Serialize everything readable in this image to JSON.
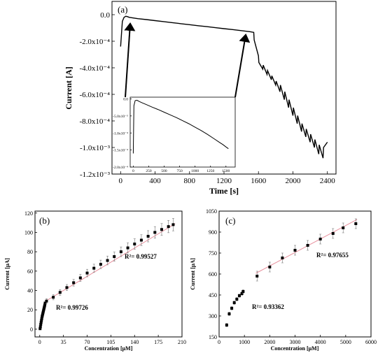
{
  "chart_data": [
    {
      "id": "a",
      "type": "line",
      "panel_label": "(a)",
      "xlabel": "Time [s]",
      "ylabel": "Current [A]",
      "xlim": [
        -100,
        2500
      ],
      "ylim": [
        -0.0012,
        0.0001
      ],
      "xticks": [
        0,
        400,
        800,
        1200,
        1600,
        2000,
        2400
      ],
      "xtick_labels": [
        "0",
        "400",
        "800",
        "1200",
        "1600",
        "2000",
        "2400"
      ],
      "yticks": [
        0,
        -0.0002,
        -0.0004,
        -0.0006,
        -0.0008,
        -0.001,
        -0.0012
      ],
      "ytick_labels": [
        "0.0",
        "-2.0x10⁻⁴",
        "-4.0x10⁻⁴",
        "-6.0x10⁻⁴",
        "-8.0x10⁻⁴",
        "-1.0x10⁻³",
        "-1.2x10⁻³"
      ],
      "series": [
        {
          "x": [
            0,
            20,
            40,
            60,
            80,
            100,
            200,
            300,
            400,
            500,
            600,
            700,
            800,
            900,
            1000,
            1100,
            1200,
            1300,
            1400,
            1500,
            1545,
            1550,
            1600,
            1605,
            1650,
            1655,
            1700,
            1705,
            1750,
            1755,
            1800,
            1805,
            1850,
            1855,
            1900,
            1905,
            1950,
            1955,
            2000,
            2005,
            2050,
            2055,
            2100,
            2105,
            2150,
            2155,
            2200,
            2205,
            2250,
            2255,
            2300,
            2305,
            2350,
            2355,
            2400
          ],
          "y": [
            -0.00024,
            -5e-05,
            -2e-05,
            -1.2e-05,
            -1.5e-05,
            -2e-05,
            -3e-05,
            -3.7e-05,
            -4.5e-05,
            -5.2e-05,
            -6e-05,
            -6.8e-05,
            -7.5e-05,
            -8.3e-05,
            -9e-05,
            -9.8e-05,
            -0.000105,
            -0.000112,
            -0.00012,
            -0.000128,
            -0.000133,
            -0.00019,
            -0.00031,
            -0.00036,
            -0.00041,
            -0.00038,
            -0.00045,
            -0.00042,
            -0.00049,
            -0.00046,
            -0.00053,
            -0.0005,
            -0.00058,
            -0.00053,
            -0.00064,
            -0.00058,
            -0.0007,
            -0.00064,
            -0.00076,
            -0.0007,
            -0.00082,
            -0.00076,
            -0.00088,
            -0.00082,
            -0.00092,
            -0.00086,
            -0.00096,
            -0.0009,
            -0.001,
            -0.00094,
            -0.00105,
            -0.00098,
            -0.00108,
            -0.001,
            -0.00096
          ]
        }
      ],
      "inset": {
        "xlim": [
          -50,
          1650
        ],
        "ylim": [
          -0.0002,
          5e-06
        ],
        "xticks": [
          0,
          250,
          500,
          750,
          1000,
          1250,
          1500
        ],
        "xtick_labels": [
          "0",
          "250",
          "500",
          "750",
          "1000",
          "1250",
          "1500"
        ],
        "yticks": [
          0,
          -5e-05,
          -0.0001,
          -0.00015,
          -0.0002
        ],
        "ytick_labels": [
          "0.0",
          "-5.0x10⁻⁵",
          "-1.0x10⁻⁴",
          "-1.5x10⁻⁴",
          "-2.0x10⁻⁴"
        ],
        "x": [
          0,
          10,
          30,
          60,
          100,
          150,
          200,
          300,
          400,
          500,
          600,
          700,
          800,
          900,
          1000,
          1100,
          1200,
          1300,
          1400,
          1450,
          1500,
          1540
        ],
        "y": [
          -0.00016,
          -2e-05,
          -5e-06,
          -4e-06,
          -8e-06,
          -1.2e-05,
          -1.6e-05,
          -2.4e-05,
          -3.1e-05,
          -3.9e-05,
          -4.7e-05,
          -5.5e-05,
          -6.4e-05,
          -7.3e-05,
          -8.3e-05,
          -9.3e-05,
          -0.000104,
          -0.000116,
          -0.000128,
          -0.000134,
          -0.000141,
          -0.000146
        ]
      }
    },
    {
      "id": "b",
      "type": "scatter",
      "panel_label": "(b)",
      "xlabel": "Concentration [μM]",
      "ylabel": "Current [μA]",
      "xlim": [
        -7,
        210
      ],
      "ylim": [
        -8,
        122
      ],
      "xticks": [
        0,
        35,
        70,
        105,
        140,
        175,
        210
      ],
      "xtick_labels": [
        "0",
        "35",
        "70",
        "105",
        "140",
        "175",
        "210"
      ],
      "yticks": [
        0,
        20,
        40,
        60,
        80,
        100,
        120
      ],
      "ytick_labels": [
        "0",
        "20",
        "40",
        "60",
        "80",
        "100",
        "120"
      ],
      "annotations": [
        "R²= 0.99527",
        "R²= 0.99726"
      ],
      "low": {
        "x": [
          0.5,
          1,
          1.5,
          2,
          2.5,
          3,
          3.5,
          4,
          4.5,
          5,
          5.5,
          6,
          6.5,
          7,
          7.5,
          8
        ],
        "y": [
          0.5,
          2.5,
          5,
          7,
          9,
          11,
          13,
          14.5,
          16,
          17.5,
          19,
          20.5,
          22,
          23.5,
          25,
          27
        ]
      },
      "high": {
        "x": [
          10,
          20,
          30,
          40,
          50,
          60,
          70,
          80,
          90,
          100,
          110,
          120,
          130,
          140,
          150,
          160,
          170,
          180,
          190,
          197
        ],
        "y": [
          29,
          33,
          38,
          43,
          48,
          53,
          58,
          63,
          67,
          71,
          75,
          80,
          84,
          88,
          92,
          96,
          100,
          103,
          106,
          108
        ]
      },
      "fit_high": {
        "x": [
          10,
          200
        ],
        "y": [
          29.5,
          109
        ]
      }
    },
    {
      "id": "c",
      "type": "scatter",
      "panel_label": "(c)",
      "xlabel": "Concentration [μM]",
      "ylabel": "Current [μA]",
      "xlim": [
        0,
        6000
      ],
      "ylim": [
        150,
        1050
      ],
      "xticks": [
        0,
        1000,
        2000,
        3000,
        4000,
        5000,
        6000
      ],
      "xtick_labels": [
        "0",
        "1000",
        "2000",
        "3000",
        "4000",
        "5000",
        "6000"
      ],
      "yticks": [
        150,
        300,
        450,
        600,
        750,
        900,
        1050
      ],
      "ytick_labels": [
        "150",
        "300",
        "450",
        "600",
        "750",
        "900",
        "1050"
      ],
      "annotations": [
        "R²= 0.97655",
        "R²= 0.93362"
      ],
      "low": {
        "x": [
          300,
          400,
          500,
          600,
          700,
          800,
          900,
          950
        ],
        "y": [
          235,
          315,
          355,
          395,
          420,
          445,
          460,
          475
        ]
      },
      "high": {
        "x": [
          1500,
          2000,
          2500,
          3000,
          3500,
          4000,
          4500,
          4900,
          5400
        ],
        "y": [
          585,
          650,
          715,
          770,
          805,
          850,
          890,
          930,
          960
        ]
      },
      "fit_high": {
        "x": [
          1450,
          5450
        ],
        "y": [
          605,
          990
        ]
      }
    }
  ]
}
